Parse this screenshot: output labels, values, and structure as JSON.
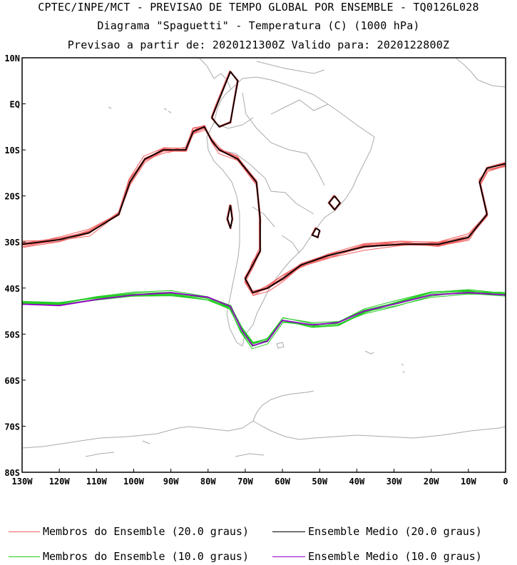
{
  "titles": {
    "line1": "CPTEC/INPE/MCT - PREVISAO DE TEMPO GLOBAL POR ENSEMBLE - TQ0126L028",
    "line2": "Diagrama \"Spaguetti\" - Temperatura (C) (1000 hPa)",
    "line3": "Previsao a partir de: 2020121300Z  Valido para: 2020122800Z"
  },
  "axes": {
    "lat_labels": [
      "10N",
      "EQ",
      "10S",
      "20S",
      "30S",
      "40S",
      "50S",
      "60S",
      "70S",
      "80S"
    ],
    "lon_labels": [
      "130W",
      "120W",
      "110W",
      "100W",
      "90W",
      "80W",
      "70W",
      "60W",
      "50W",
      "40W",
      "30W",
      "20W",
      "10W",
      "0"
    ],
    "lat_range": [
      10,
      -80
    ],
    "lon_range": [
      -130,
      0
    ]
  },
  "legend": [
    {
      "label": "Membros do Ensemble (20.0 graus)",
      "color": "#f06060"
    },
    {
      "label": "Ensemble Medio (20.0 graus)",
      "color": "#000000"
    },
    {
      "label": "Membros do Ensemble (10.0 graus)",
      "color": "#22cc22"
    },
    {
      "label": "Ensemble Medio (10.0 graus)",
      "color": "#9900cc"
    }
  ],
  "colors": {
    "member20": "#f06060",
    "mean20": "#000000",
    "member10": "#22cc22",
    "mean10": "#9900cc",
    "coast": "#aaaaaa",
    "frame": "#000000"
  },
  "contours": {
    "mean20_main": [
      [
        -130,
        -30.5
      ],
      [
        -120,
        -29.5
      ],
      [
        -112,
        -28
      ],
      [
        -104,
        -24
      ],
      [
        -101,
        -17
      ],
      [
        -97,
        -12
      ],
      [
        -92,
        -10
      ],
      [
        -86,
        -10
      ],
      [
        -84,
        -6
      ],
      [
        -81,
        -5
      ],
      [
        -79,
        -8
      ],
      [
        -77,
        -10
      ],
      [
        -72,
        -12
      ],
      [
        -67,
        -17
      ],
      [
        -66,
        -25
      ],
      [
        -66,
        -32
      ],
      [
        -68,
        -35
      ],
      [
        -70,
        -38
      ],
      [
        -68,
        -41
      ],
      [
        -64,
        -40
      ],
      [
        -60,
        -38
      ],
      [
        -55,
        -35
      ],
      [
        -48,
        -33
      ],
      [
        -38,
        -31
      ],
      [
        -28,
        -30.5
      ],
      [
        -18,
        -30.5
      ],
      [
        -10,
        -29
      ],
      [
        -5,
        -24
      ],
      [
        -7,
        -17
      ],
      [
        -5,
        -14
      ],
      [
        0,
        -13
      ]
    ],
    "mean20_lobe": [
      [
        -79,
        -3
      ],
      [
        -77,
        -5
      ],
      [
        -74,
        -4
      ],
      [
        -72,
        5
      ],
      [
        -74,
        7
      ],
      [
        -78,
        -1
      ],
      [
        -79,
        -3
      ]
    ],
    "mean20_island1": [
      [
        -74,
        -22
      ],
      [
        -73.5,
        -25
      ],
      [
        -74,
        -27
      ],
      [
        -74.8,
        -25
      ],
      [
        -74,
        -22
      ]
    ],
    "mean20_island2": [
      [
        -51,
        -27
      ],
      [
        -50,
        -27.5
      ],
      [
        -50.5,
        -29
      ],
      [
        -52,
        -28.5
      ],
      [
        -51,
        -27
      ]
    ],
    "mean20_island3": [
      [
        -46,
        -20
      ],
      [
        -44.5,
        -21.5
      ],
      [
        -46,
        -23
      ],
      [
        -47.5,
        -21.5
      ],
      [
        -46,
        -20
      ]
    ],
    "mean10_main": [
      [
        -130,
        -43.5
      ],
      [
        -120,
        -43.8
      ],
      [
        -110,
        -42.5
      ],
      [
        -100,
        -41.5
      ],
      [
        -90,
        -41
      ],
      [
        -80,
        -42
      ],
      [
        -74,
        -44
      ],
      [
        -71,
        -49
      ],
      [
        -68,
        -52.5
      ],
      [
        -64,
        -51.5
      ],
      [
        -60,
        -47
      ],
      [
        -52,
        -48
      ],
      [
        -45,
        -47.5
      ],
      [
        -38,
        -45
      ],
      [
        -30,
        -43.5
      ],
      [
        -20,
        -41.5
      ],
      [
        -10,
        -41
      ],
      [
        0,
        -41.5
      ]
    ]
  },
  "ensemble_members": 12
}
